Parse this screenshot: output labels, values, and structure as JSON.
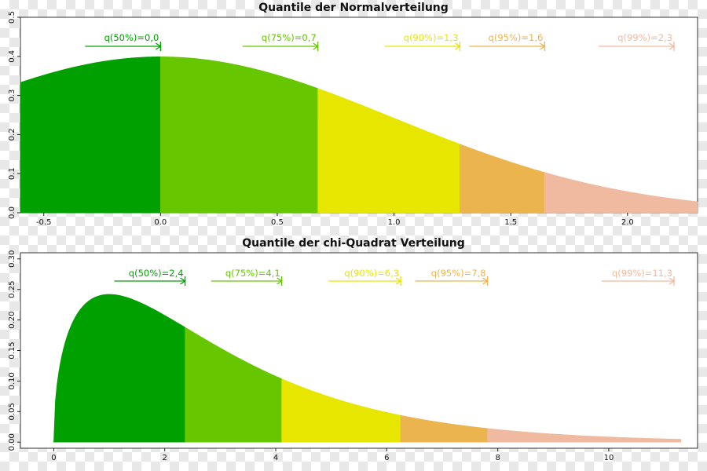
{
  "chart_data": [
    {
      "type": "area",
      "title": "Quantile der Normalverteilung",
      "distribution": "normal",
      "x_range": [
        -0.6,
        2.3
      ],
      "xlim": [
        -0.6,
        2.3
      ],
      "ylim": [
        0,
        0.5
      ],
      "x_ticks": [
        "-0.5",
        "0.0",
        "0.5",
        "1.0",
        "1.5",
        "2.0"
      ],
      "x_tick_values": [
        -0.5,
        0.0,
        0.5,
        1.0,
        1.5,
        2.0
      ],
      "y_ticks": [
        "0.0",
        "0.1",
        "0.2",
        "0.3",
        "0.4",
        "0.5"
      ],
      "y_tick_values": [
        0.0,
        0.1,
        0.2,
        0.3,
        0.4,
        0.5
      ],
      "segments": [
        {
          "from": -0.6,
          "to": 0.0,
          "color": "#00a000"
        },
        {
          "from": 0.0,
          "to": 0.674,
          "color": "#66c600"
        },
        {
          "from": 0.674,
          "to": 1.282,
          "color": "#e6e600"
        },
        {
          "from": 1.282,
          "to": 1.645,
          "color": "#ebb44e"
        },
        {
          "from": 1.645,
          "to": 2.3,
          "color": "#f0baa0"
        }
      ],
      "quantiles": [
        {
          "label": "q(50%)=0,0",
          "value": 0.0,
          "color": "#00a000"
        },
        {
          "label": "q(75%)=0,7",
          "value": 0.674,
          "color": "#66c600"
        },
        {
          "label": "q(90%)=1,3",
          "value": 1.282,
          "color": "#e6e600"
        },
        {
          "label": "q(95%)=1,6",
          "value": 1.645,
          "color": "#ebb44e"
        },
        {
          "label": "q(99%)=2,3",
          "value": 2.326,
          "color": "#f0baa0"
        }
      ]
    },
    {
      "type": "area",
      "title": "Quantile der chi-Quadrat Verteilung",
      "distribution": "chi-square",
      "df": 3,
      "x_range": [
        0,
        11.3
      ],
      "xlim": [
        -0.6,
        11.6
      ],
      "ylim": [
        -0.01,
        0.31
      ],
      "x_ticks": [
        "0",
        "2",
        "4",
        "6",
        "8",
        "10"
      ],
      "x_tick_values": [
        0,
        2,
        4,
        6,
        8,
        10
      ],
      "y_ticks": [
        "0.00",
        "0.05",
        "0.10",
        "0.15",
        "0.20",
        "0.25",
        "0.30"
      ],
      "y_tick_values": [
        0.0,
        0.05,
        0.1,
        0.15,
        0.2,
        0.25,
        0.3
      ],
      "segments": [
        {
          "from": 0,
          "to": 2.366,
          "color": "#00a000"
        },
        {
          "from": 2.366,
          "to": 4.108,
          "color": "#66c600"
        },
        {
          "from": 4.108,
          "to": 6.251,
          "color": "#e6e600"
        },
        {
          "from": 6.251,
          "to": 7.815,
          "color": "#ebb44e"
        },
        {
          "from": 7.815,
          "to": 11.3,
          "color": "#f0baa0"
        }
      ],
      "quantiles": [
        {
          "label": "q(50%)=2,4",
          "value": 2.366,
          "color": "#00a000"
        },
        {
          "label": "q(75%)=4,1",
          "value": 4.108,
          "color": "#66c600"
        },
        {
          "label": "q(90%)=6,3",
          "value": 6.251,
          "color": "#e6e600"
        },
        {
          "label": "q(95%)=7,8",
          "value": 7.815,
          "color": "#ebb44e"
        },
        {
          "label": "q(99%)=11,3",
          "value": 11.345,
          "color": "#f0baa0"
        }
      ]
    }
  ]
}
